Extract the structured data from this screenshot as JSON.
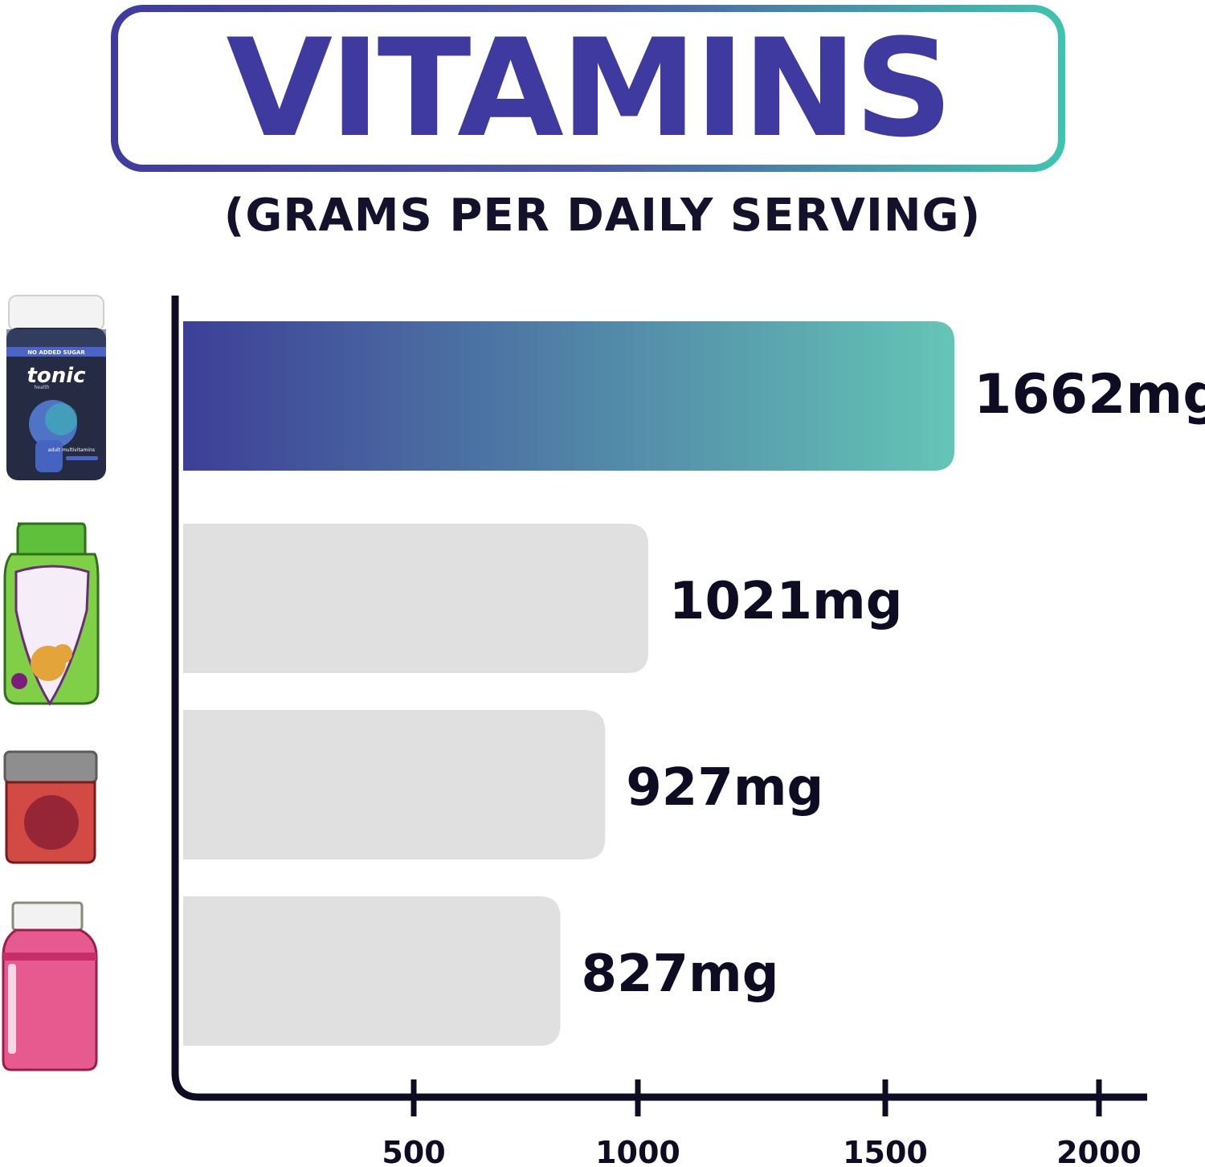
{
  "chart_data": {
    "type": "bar",
    "orientation": "horizontal",
    "title": "VITAMINS",
    "subtitle": "(GRAMS PER DAILY SERVING)",
    "categories": [
      "",
      "",
      "",
      ""
    ],
    "values": [
      1662,
      1021,
      927,
      827
    ],
    "value_labels": [
      "1662mg",
      "1021mg",
      "927mg",
      "827mg"
    ],
    "x_ticks": [
      500,
      1000,
      1500,
      2000
    ],
    "x_tick_labels": [
      "500",
      "1000",
      "1500",
      "2000"
    ],
    "product_icons": [
      "tonic-jar-icon",
      "green-bottle-icon",
      "red-jar-icon",
      "pink-bottle-icon"
    ],
    "product_text": {
      "badge": "NO ADDED SUGAR",
      "brand": "tonic",
      "brand_sub": "health",
      "product": "adult multivitamins"
    },
    "highlight_gradient": [
      "#3d3f97",
      "#64c5b6"
    ],
    "other_bar_color": "#e0e0e0",
    "title_color": "#3f3a9f",
    "grid": false
  }
}
